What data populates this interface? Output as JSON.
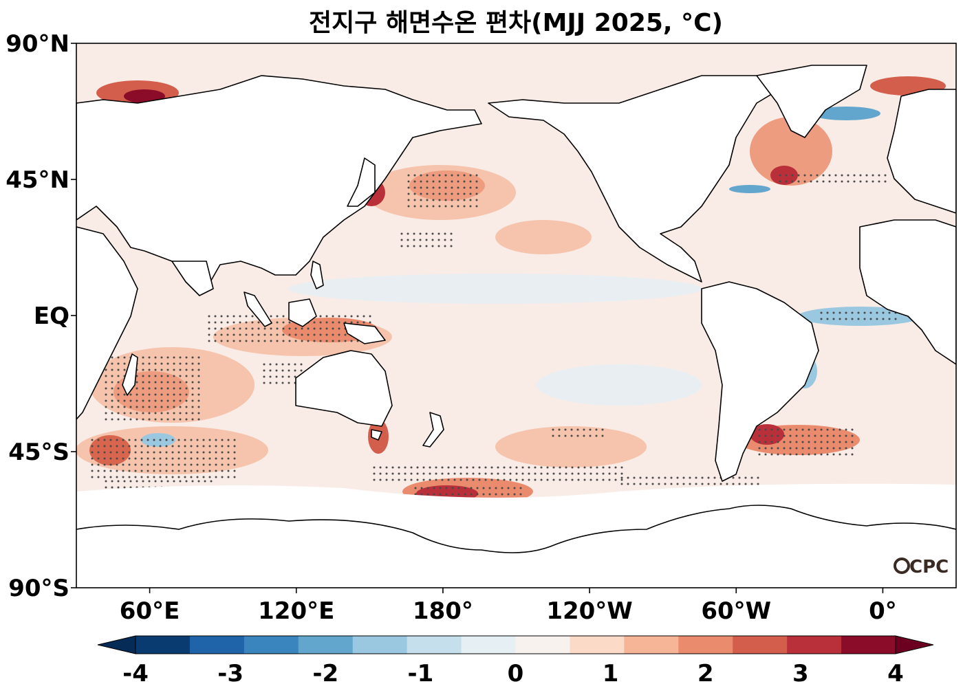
{
  "title": "전지구 해면수온 편차(MJJ 2025, °C)",
  "map": {
    "projection": "PlateCarree, central longitude 180°",
    "lon_range": [
      30,
      390
    ],
    "lat_range": [
      -90,
      90
    ],
    "lat_ticks": [
      {
        "value": 90,
        "label": "90°N"
      },
      {
        "value": 45,
        "label": "45°N"
      },
      {
        "value": 0,
        "label": "EQ"
      },
      {
        "value": -45,
        "label": "45°S"
      },
      {
        "value": -90,
        "label": "90°S"
      }
    ],
    "lon_ticks": [
      {
        "value": 60,
        "label": "60°E"
      },
      {
        "value": 120,
        "label": "120°E"
      },
      {
        "value": 180,
        "label": "180°"
      },
      {
        "value": 240,
        "label": "120°W"
      },
      {
        "value": 300,
        "label": "60°W"
      },
      {
        "value": 360,
        "label": "0°"
      }
    ],
    "stippling": "dots mark significant anomalies",
    "logo": "CPC"
  },
  "colorbar": {
    "min": -4,
    "max": 4,
    "step": 0.5,
    "extend": "both",
    "ticks": [
      {
        "value": -4,
        "label": "-4"
      },
      {
        "value": -3,
        "label": "-3"
      },
      {
        "value": -2,
        "label": "-2"
      },
      {
        "value": -1,
        "label": "-1"
      },
      {
        "value": 0,
        "label": "0"
      },
      {
        "value": 1,
        "label": "1"
      },
      {
        "value": 2,
        "label": "2"
      },
      {
        "value": 3,
        "label": "3"
      },
      {
        "value": 4,
        "label": "4"
      }
    ],
    "colors": [
      "#0a3b70",
      "#1f63a8",
      "#3a85bd",
      "#62a6cd",
      "#9ac8e0",
      "#c5dfec",
      "#e6eff4",
      "#f8f2ef",
      "#fbdbc8",
      "#f6b596",
      "#ea8b6e",
      "#d45e4c",
      "#b9303a",
      "#8a0c28"
    ],
    "below_color": "#062b57",
    "above_color": "#6b0020"
  },
  "colors": {
    "land": "#ffffff",
    "coast": "#000000",
    "frame": "#000000",
    "stipple": "#4a4a4a"
  }
}
